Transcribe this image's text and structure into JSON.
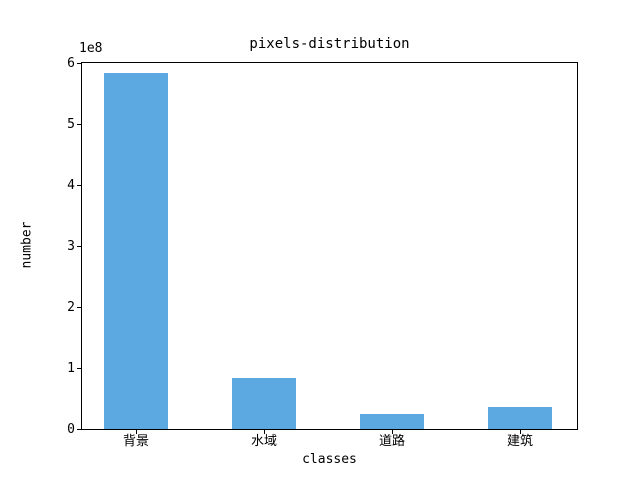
{
  "chart_data": {
    "type": "bar",
    "title": "pixels-distribution",
    "xlabel": "classes",
    "ylabel": "number",
    "y_offset_label": "1e8",
    "categories": [
      "背景",
      "水域",
      "道路",
      "建筑"
    ],
    "values": [
      583000000,
      84000000,
      24000000,
      36000000
    ],
    "ylim": [
      0,
      600000000
    ],
    "ytick_labels": [
      "0",
      "1",
      "2",
      "3",
      "4",
      "5",
      "6"
    ],
    "bar_color": "#5ba9e0",
    "grid": false,
    "legend": null,
    "background_color": "#ffffff",
    "spine_color": "#000000"
  }
}
